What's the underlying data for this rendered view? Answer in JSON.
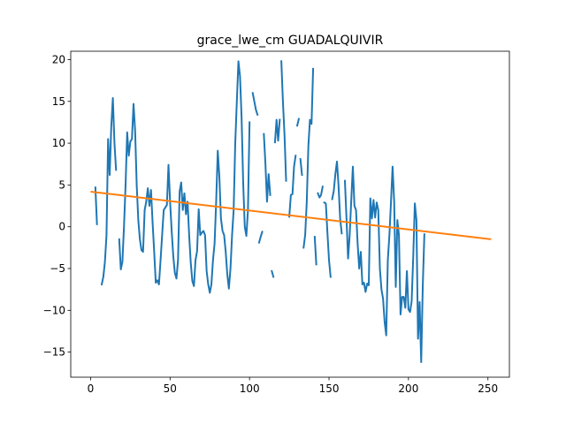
{
  "chart_data": {
    "type": "line",
    "title": "grace_lwe_cm GUADALQUIVIR",
    "xlabel": "",
    "ylabel": "",
    "xlim": [
      -12.5,
      263.5
    ],
    "ylim": [
      -18.0,
      21.0
    ],
    "xticks": [
      0,
      50,
      100,
      150,
      200,
      250
    ],
    "yticks": [
      -15,
      -10,
      -5,
      0,
      5,
      10,
      15,
      20
    ],
    "grid": false,
    "legend": "none",
    "series": [
      {
        "color": "#1f77b4",
        "segments": [
          [
            [
              3,
              4.7
            ],
            [
              4,
              0.3
            ]
          ],
          [
            [
              7,
              -6.9
            ],
            [
              8,
              -6.0
            ],
            [
              9,
              -4.2
            ],
            [
              10,
              -1.0
            ],
            [
              11,
              10.5
            ],
            [
              12,
              6.2
            ],
            [
              13,
              12.0
            ],
            [
              14,
              15.4
            ],
            [
              15,
              10.0
            ],
            [
              16,
              6.8
            ]
          ],
          [
            [
              18,
              -1.5
            ],
            [
              19,
              -5.1
            ],
            [
              20,
              -4.2
            ],
            [
              21,
              0.0
            ],
            [
              22,
              5.0
            ],
            [
              23,
              11.3
            ],
            [
              24,
              8.5
            ],
            [
              25,
              10.2
            ],
            [
              26,
              10.5
            ],
            [
              27,
              14.7
            ],
            [
              28,
              11.5
            ],
            [
              29,
              5.0
            ],
            [
              30,
              0.8
            ],
            [
              31,
              -1.5
            ],
            [
              32,
              -2.8
            ],
            [
              33,
              -3.0
            ],
            [
              34,
              2.0
            ],
            [
              35,
              3.0
            ],
            [
              36,
              4.6
            ],
            [
              37,
              2.5
            ],
            [
              38,
              4.4
            ],
            [
              39,
              0.5
            ],
            [
              40,
              -3.0
            ],
            [
              41,
              -6.7
            ],
            [
              42,
              -6.4
            ],
            [
              43,
              -6.9
            ],
            [
              44,
              -4.0
            ],
            [
              45,
              -1.0
            ],
            [
              46,
              2.0
            ],
            [
              47,
              2.3
            ],
            [
              48,
              2.6
            ],
            [
              49,
              7.4
            ],
            [
              50,
              3.0
            ],
            [
              51,
              -0.5
            ],
            [
              52,
              -3.5
            ],
            [
              53,
              -5.5
            ],
            [
              54,
              -6.2
            ],
            [
              55,
              -4.0
            ],
            [
              56,
              4.2
            ],
            [
              57,
              5.3
            ],
            [
              58,
              2.0
            ],
            [
              59,
              4.0
            ],
            [
              60,
              1.5
            ],
            [
              61,
              3.0
            ],
            [
              62,
              -1.0
            ],
            [
              63,
              -4.3
            ],
            [
              64,
              -6.5
            ],
            [
              65,
              -7.1
            ],
            [
              66,
              -4.0
            ],
            [
              67,
              -2.9
            ],
            [
              68,
              2.1
            ],
            [
              69,
              -1.0
            ],
            [
              70,
              -0.7
            ],
            [
              71,
              -0.5
            ],
            [
              72,
              -1.0
            ],
            [
              73,
              -5.3
            ],
            [
              74,
              -6.9
            ],
            [
              75,
              -7.9
            ],
            [
              76,
              -6.9
            ],
            [
              77,
              -4.0
            ],
            [
              78,
              -2.0
            ],
            [
              79,
              3.0
            ],
            [
              80,
              9.1
            ],
            [
              81,
              6.0
            ],
            [
              82,
              1.0
            ],
            [
              83,
              -0.5
            ],
            [
              84,
              -1.0
            ],
            [
              85,
              -3.0
            ],
            [
              86,
              -5.7
            ],
            [
              87,
              -7.4
            ],
            [
              88,
              -5.0
            ],
            [
              89,
              -1.0
            ],
            [
              90,
              2.0
            ],
            [
              91,
              10.0
            ],
            [
              92,
              15.0
            ],
            [
              93,
              19.8
            ],
            [
              94,
              18.0
            ],
            [
              95,
              13.0
            ],
            [
              96,
              5.2
            ],
            [
              97,
              0.0
            ],
            [
              98,
              -1.1
            ],
            [
              99,
              2.0
            ],
            [
              100,
              12.5
            ]
          ],
          [
            [
              102,
              16.0
            ],
            [
              103,
              15.0
            ],
            [
              104,
              14.0
            ],
            [
              105,
              13.4
            ]
          ],
          [
            [
              106,
              -1.9
            ],
            [
              107,
              -1.2
            ],
            [
              108,
              -0.6
            ]
          ],
          [
            [
              109,
              11.1
            ],
            [
              110,
              7.5
            ],
            [
              111,
              3.0
            ],
            [
              112,
              6.3
            ],
            [
              113,
              3.8
            ]
          ],
          [
            [
              114,
              -5.3
            ],
            [
              115,
              -6.0
            ]
          ],
          [
            [
              116,
              10.1
            ],
            [
              117,
              12.8
            ],
            [
              118,
              10.3
            ],
            [
              119,
              12.8
            ]
          ],
          [
            [
              120,
              19.8
            ],
            [
              121,
              15.0
            ],
            [
              122,
              11.0
            ],
            [
              123,
              5.5
            ]
          ],
          [
            [
              125,
              1.2
            ],
            [
              126,
              3.8
            ],
            [
              127,
              3.9
            ],
            [
              128,
              7.2
            ],
            [
              129,
              8.5
            ]
          ],
          [
            [
              130,
              12.1
            ],
            [
              131,
              12.9
            ]
          ],
          [
            [
              132,
              8.1
            ],
            [
              133,
              6.2
            ]
          ],
          [
            [
              134,
              -2.5
            ],
            [
              135,
              -1.0
            ],
            [
              136,
              3.0
            ],
            [
              137,
              9.6
            ],
            [
              138,
              12.8
            ],
            [
              139,
              12.3
            ],
            [
              140,
              18.9
            ]
          ],
          [
            [
              141,
              -1.2
            ],
            [
              142,
              -4.5
            ]
          ],
          [
            [
              143,
              4.0
            ],
            [
              144,
              3.5
            ],
            [
              145,
              3.8
            ],
            [
              146,
              4.8
            ]
          ],
          [
            [
              147,
              2.9
            ],
            [
              148,
              2.8
            ],
            [
              149,
              -0.7
            ],
            [
              150,
              -4.0
            ],
            [
              151,
              -6.0
            ]
          ],
          [
            [
              152,
              3.3
            ],
            [
              153,
              4.3
            ],
            [
              154,
              6.3
            ],
            [
              155,
              7.8
            ],
            [
              156,
              4.9
            ],
            [
              157,
              1.0
            ],
            [
              158,
              -0.8
            ]
          ],
          [
            [
              160,
              5.5
            ],
            [
              161,
              1.0
            ],
            [
              162,
              -3.8
            ],
            [
              163,
              -1.0
            ],
            [
              164,
              3.2
            ],
            [
              165,
              7.2
            ],
            [
              166,
              2.5
            ],
            [
              167,
              2.0
            ],
            [
              168,
              -2.0
            ],
            [
              169,
              -5.0
            ],
            [
              170,
              -3.0
            ],
            [
              171,
              -6.9
            ],
            [
              172,
              -6.7
            ],
            [
              173,
              -7.8
            ],
            [
              174,
              -6.8
            ],
            [
              175,
              -7.0
            ],
            [
              176,
              3.4
            ],
            [
              177,
              1.0
            ],
            [
              178,
              3.2
            ],
            [
              179,
              1.1
            ],
            [
              180,
              2.9
            ],
            [
              181,
              2.0
            ],
            [
              182,
              -5.0
            ],
            [
              183,
              -7.5
            ],
            [
              184,
              -8.6
            ],
            [
              185,
              -11.4
            ],
            [
              186,
              -13.0
            ],
            [
              187,
              -4.0
            ],
            [
              188,
              -1.0
            ],
            [
              189,
              3.0
            ],
            [
              190,
              7.2
            ],
            [
              191,
              3.0
            ],
            [
              192,
              -7.2
            ],
            [
              193,
              0.8
            ],
            [
              194,
              -1.0
            ],
            [
              195,
              -10.5
            ],
            [
              196,
              -8.4
            ],
            [
              197,
              -8.4
            ],
            [
              198,
              -9.7
            ],
            [
              199,
              -5.3
            ],
            [
              200,
              -9.9
            ],
            [
              201,
              -10.2
            ],
            [
              202,
              -8.9
            ],
            [
              203,
              -3.5
            ],
            [
              204,
              2.8
            ],
            [
              205,
              0.8
            ],
            [
              206,
              -13.4
            ],
            [
              207,
              -9.0
            ],
            [
              208,
              -16.2
            ],
            [
              209,
              -7.0
            ],
            [
              210,
              -0.9
            ]
          ]
        ]
      },
      {
        "color": "#ff7f0e",
        "points": [
          [
            0,
            4.2
          ],
          [
            252,
            -1.5
          ]
        ]
      }
    ]
  }
}
